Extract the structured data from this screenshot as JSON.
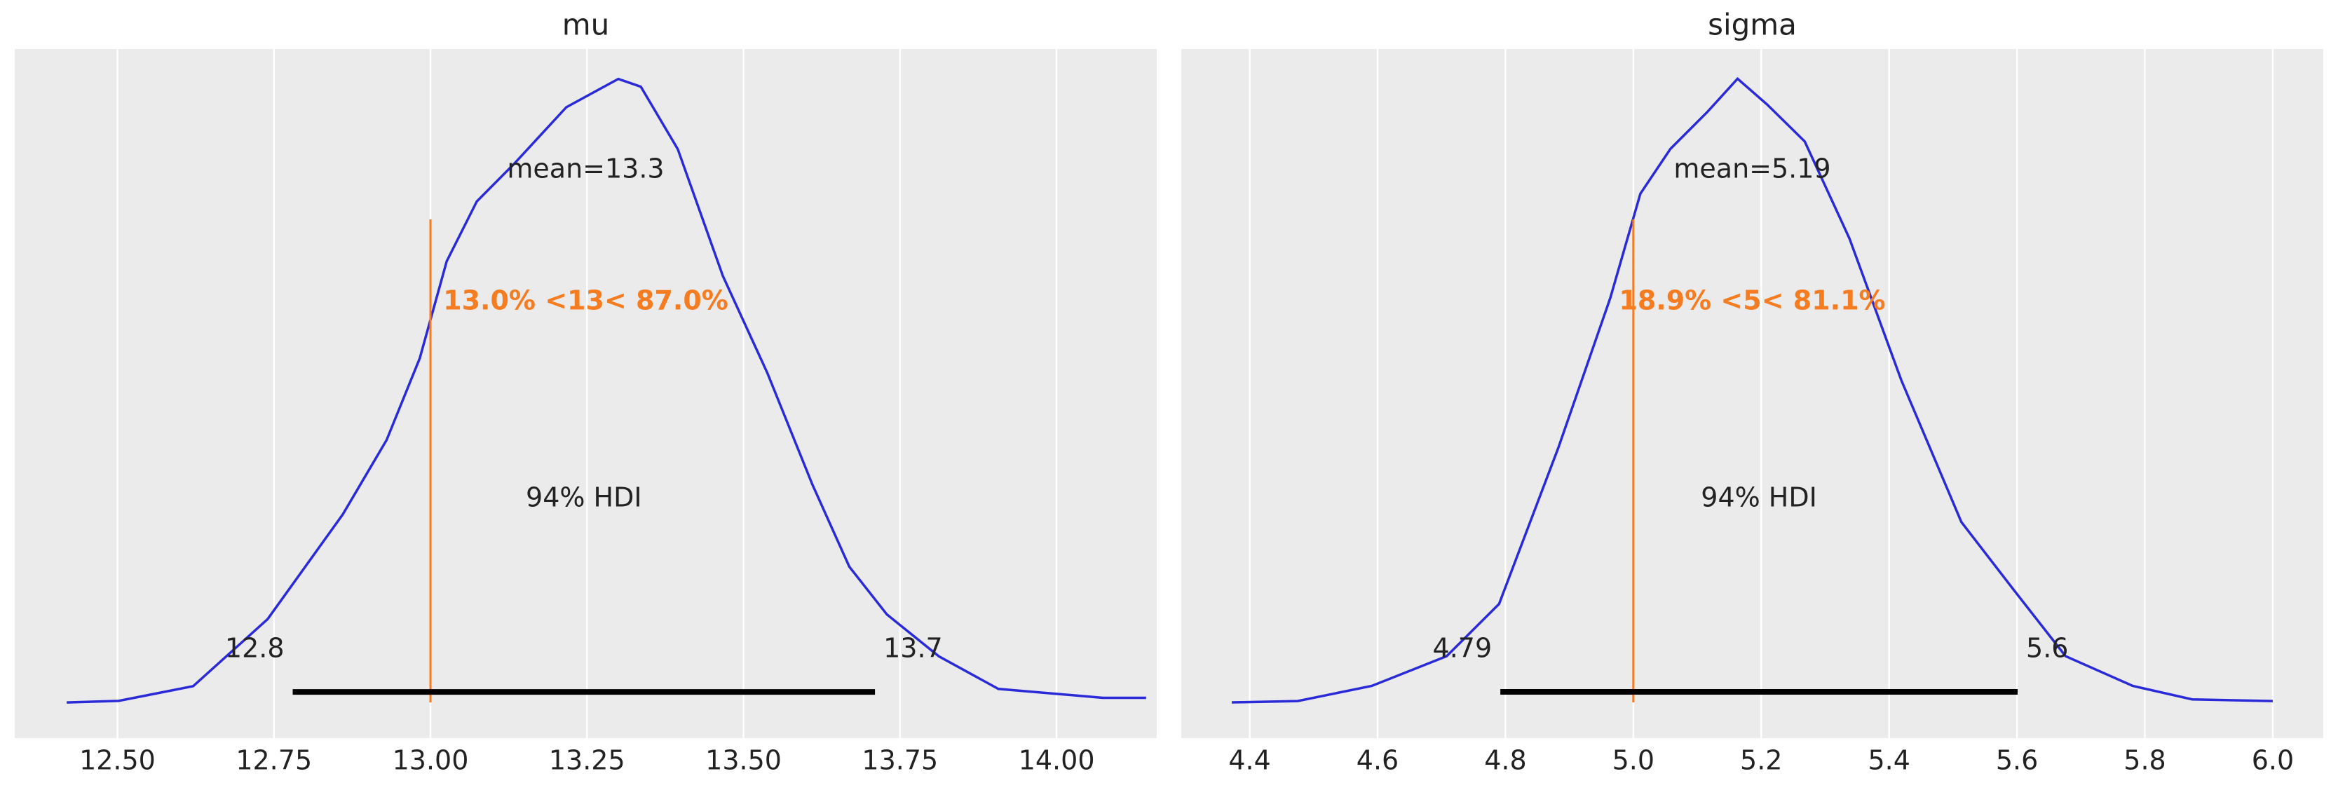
{
  "chart_data": [
    {
      "type": "density",
      "title": "mu",
      "color": "#2a2ad8",
      "grid": true,
      "x": [
        12.419,
        12.502,
        12.621,
        12.74,
        12.86,
        12.93,
        12.983,
        13.026,
        13.074,
        13.133,
        13.217,
        13.3,
        13.336,
        13.395,
        13.467,
        13.538,
        13.61,
        13.669,
        13.729,
        13.812,
        13.907,
        14.074,
        14.143
      ],
      "y": [
        0.0,
        0.004,
        0.042,
        0.215,
        0.485,
        0.677,
        0.888,
        1.138,
        1.292,
        1.388,
        1.535,
        1.608,
        1.588,
        1.427,
        1.1,
        0.85,
        0.562,
        0.35,
        0.227,
        0.119,
        0.035,
        0.012,
        0.012
      ],
      "xlim": [
        12.336,
        14.16
      ],
      "ylim": [
        -0.092,
        1.685
      ],
      "xticks": [
        {
          "value": 12.5,
          "label": "12.50"
        },
        {
          "value": 12.75,
          "label": "12.75"
        },
        {
          "value": 13,
          "label": "13.00"
        },
        {
          "value": 13.25,
          "label": "13.25"
        },
        {
          "value": 13.5,
          "label": "13.50"
        },
        {
          "value": 13.75,
          "label": "13.75"
        },
        {
          "value": 14,
          "label": "14.00"
        }
      ],
      "mean_text": "mean=13.3",
      "ref_val": 13,
      "ref_color": "#f57c20",
      "ref_text": "13.0% <13< 87.0%",
      "hdi": [
        12.78,
        13.71
      ],
      "hdi_labels": [
        "12.8",
        "13.7"
      ],
      "hdi_text": "94% HDI"
    },
    {
      "type": "density",
      "title": "sigma",
      "color": "#2a2ad8",
      "grid": true,
      "x": [
        4.372,
        4.475,
        4.591,
        4.708,
        4.79,
        4.883,
        4.964,
        5.011,
        5.058,
        5.116,
        5.163,
        5.209,
        5.268,
        5.338,
        5.419,
        5.513,
        5.594,
        5.676,
        5.781,
        5.874,
        6.0
      ],
      "y": [
        0.0,
        0.004,
        0.049,
        0.137,
        0.292,
        0.757,
        1.2,
        1.509,
        1.642,
        1.752,
        1.85,
        1.774,
        1.664,
        1.376,
        0.956,
        0.535,
        0.336,
        0.137,
        0.049,
        0.009,
        0.004
      ],
      "xlim": [
        4.293,
        6.079
      ],
      "ylim": [
        -0.106,
        1.938
      ],
      "xticks": [
        4.4,
        4.6,
        4.8,
        {
          "value": 5,
          "label": "5.0"
        },
        5.2,
        5.4,
        5.6,
        5.8,
        {
          "value": 6,
          "label": "6.0"
        }
      ],
      "mean_text": "mean=5.19",
      "ref_val": 5,
      "ref_color": "#f57c20",
      "ref_text": "18.9% <5< 81.1%",
      "hdi": [
        4.792,
        5.601
      ],
      "hdi_labels": [
        "4.79",
        "5.6"
      ],
      "hdi_text": "94% HDI"
    }
  ]
}
